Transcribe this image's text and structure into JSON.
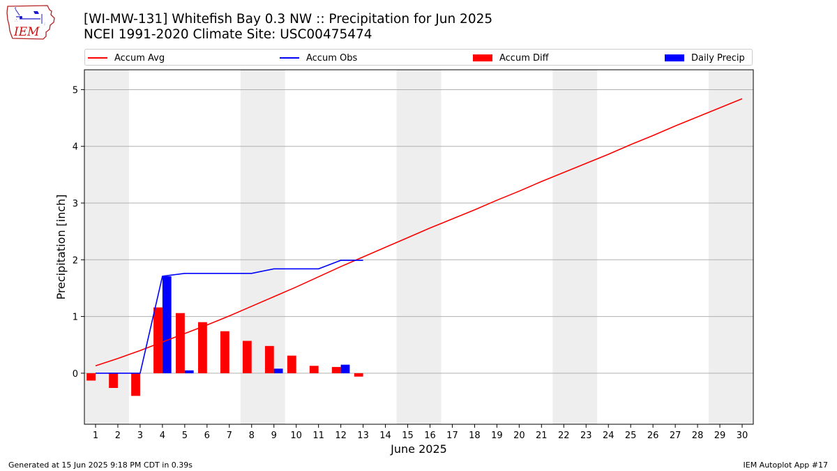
{
  "header": {
    "title_line1": "[WI-MW-131] Whitefish Bay 0.3 NW :: Precipitation for Jun 2025",
    "title_line2": "NCEI 1991-2020 Climate Site: USC00475474",
    "logo_text": "IEM"
  },
  "legend": {
    "accum_avg": "Accum Avg",
    "accum_obs": "Accum Obs",
    "accum_diff": "Accum Diff",
    "daily_precip": "Daily Precip"
  },
  "footer": {
    "generated": "Generated at 15 Jun 2025 9:18 PM CDT in 0.39s",
    "app": "IEM Autoplot App #17"
  },
  "colors": {
    "accum_avg": "#ff0000",
    "accum_obs": "#0000ff",
    "accum_diff": "#ff0000",
    "daily_precip": "#0000ff",
    "weekend_band": "#eeeeee",
    "grid": "#b0b0b0"
  },
  "chart_data": {
    "type": "bar",
    "xlabel": "June 2025",
    "ylabel": "Precipitation [inch]",
    "x": [
      1,
      2,
      3,
      4,
      5,
      6,
      7,
      8,
      9,
      10,
      11,
      12,
      13,
      14,
      15,
      16,
      17,
      18,
      19,
      20,
      21,
      22,
      23,
      24,
      25,
      26,
      27,
      28,
      29,
      30
    ],
    "xlim": [
      0.5,
      30.5
    ],
    "ylim": [
      -0.9,
      5.35
    ],
    "yticks": [
      0,
      1,
      2,
      3,
      4,
      5
    ],
    "grid": true,
    "legend_position": "top",
    "weekend_day_pairs": [
      [
        0,
        1
      ],
      [
        7,
        8
      ],
      [
        14,
        15
      ],
      [
        21,
        22
      ],
      [
        28,
        29
      ]
    ],
    "series": [
      {
        "name": "Accum Avg",
        "type": "line",
        "values": [
          0.13,
          0.26,
          0.4,
          0.55,
          0.7,
          0.85,
          1.01,
          1.18,
          1.35,
          1.52,
          1.7,
          1.88,
          2.05,
          2.22,
          2.39,
          2.56,
          2.72,
          2.88,
          3.05,
          3.21,
          3.38,
          3.54,
          3.7,
          3.86,
          4.03,
          4.19,
          4.36,
          4.52,
          4.68,
          4.84
        ]
      },
      {
        "name": "Accum Obs",
        "type": "line",
        "x": [
          1,
          2,
          3,
          4,
          5,
          6,
          7,
          8,
          9,
          10,
          11,
          12,
          13
        ],
        "values": [
          0.0,
          0.0,
          0.0,
          1.71,
          1.76,
          1.76,
          1.76,
          1.76,
          1.84,
          1.84,
          1.84,
          1.99,
          1.99
        ]
      },
      {
        "name": "Accum Diff",
        "type": "bar",
        "x": [
          1,
          2,
          3,
          4,
          5,
          6,
          7,
          8,
          9,
          10,
          11,
          12,
          13
        ],
        "values": [
          -0.13,
          -0.26,
          -0.4,
          1.16,
          1.06,
          0.9,
          0.74,
          0.57,
          0.48,
          0.31,
          0.13,
          0.11,
          -0.06
        ]
      },
      {
        "name": "Daily Precip",
        "type": "bar",
        "x": [
          1,
          2,
          3,
          4,
          5,
          6,
          7,
          8,
          9,
          10,
          11,
          12,
          13
        ],
        "values": [
          0,
          0,
          0,
          1.71,
          0.05,
          0,
          0,
          0,
          0.08,
          0,
          0,
          0.15,
          0
        ]
      }
    ]
  }
}
